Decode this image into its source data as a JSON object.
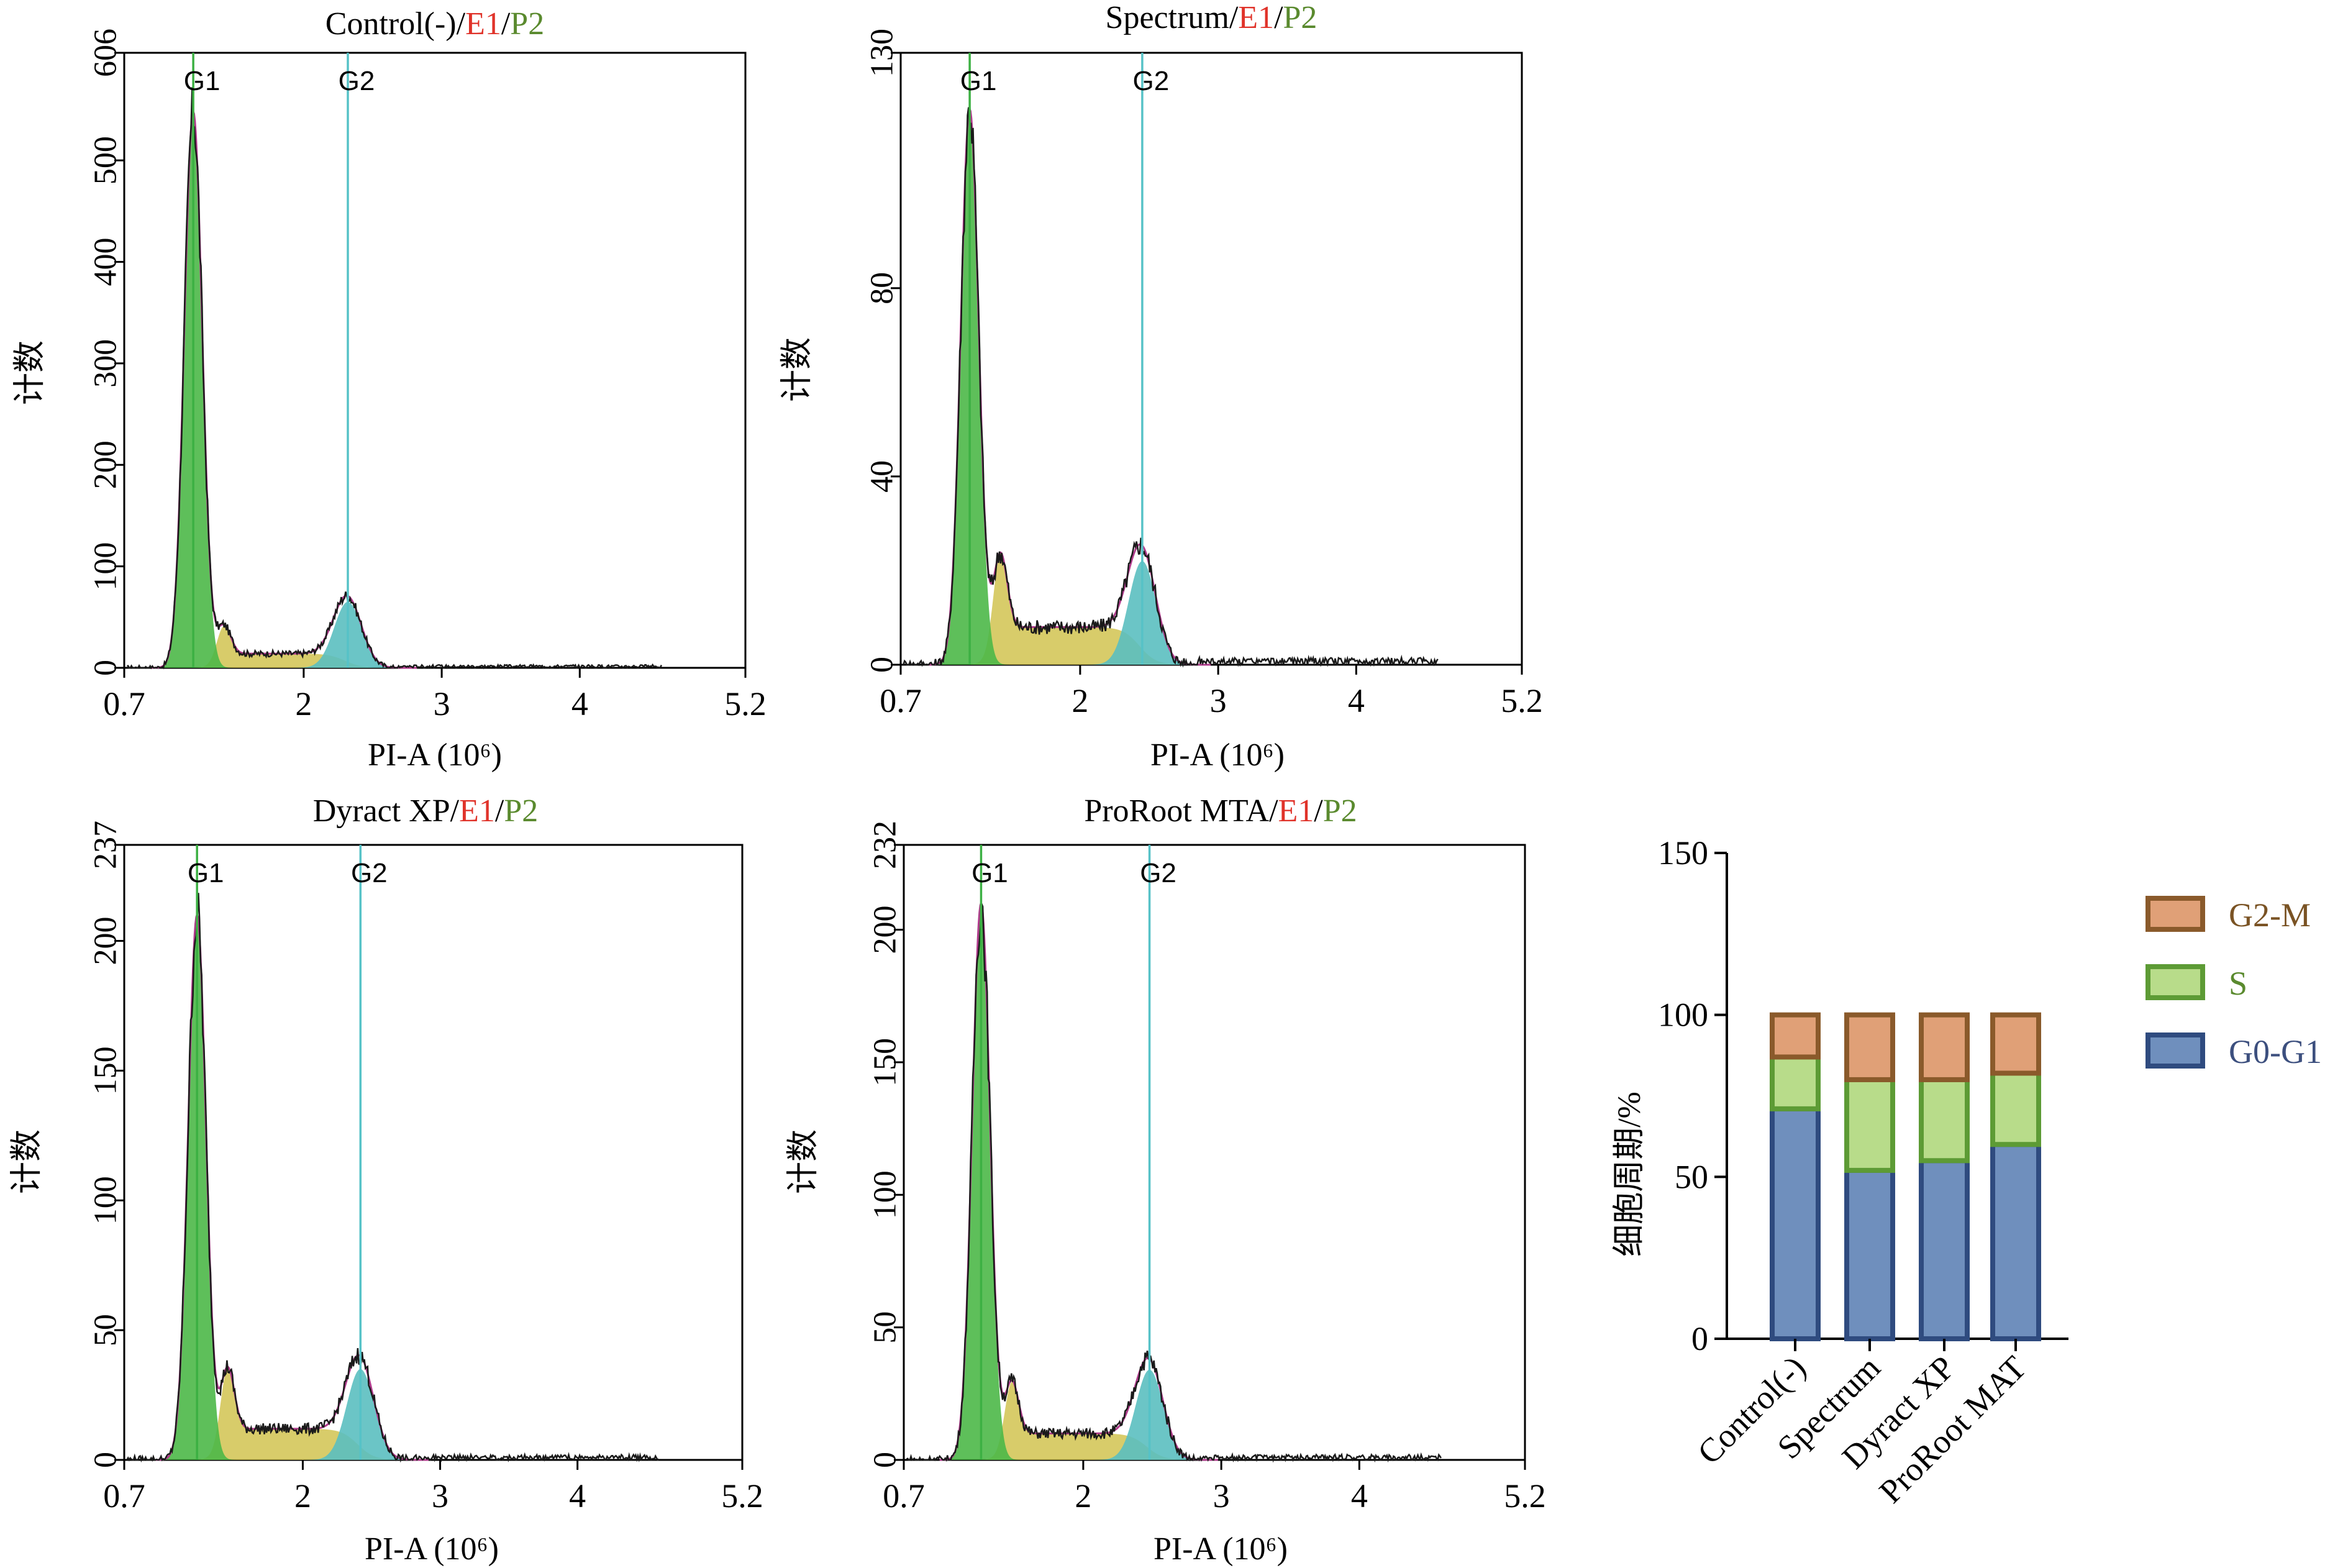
{
  "colors": {
    "g1_fill": "#4db848",
    "s_fill": "#d4c75a",
    "g2_fill": "#5bbfc0",
    "g1_line": "#3cb043",
    "g2_line": "#56c2c7",
    "envelope": "#b03a8c",
    "histogram": "#1a1a1a",
    "title_red": "#e0332a",
    "title_green": "#5a8a2e",
    "bar_g0g1_fill": "#6f8fbd",
    "bar_g0g1_edge": "#2f4b7f",
    "bar_s_fill": "#b8dc8a",
    "bar_s_edge": "#5d9b35",
    "bar_g2m_fill": "#e0a077",
    "bar_g2m_edge": "#8a5a2b",
    "legend_text_g2m": "#7a5324",
    "legend_text_s": "#5a8a2e",
    "legend_text_g0g1": "#3c4f7e"
  },
  "chart_data": [
    {
      "type": "area",
      "title": {
        "name": "Control(-)",
        "sep1": "/",
        "e1": "E1",
        "sep2": "/",
        "p2": "P2"
      },
      "xlabel": "PI-A (10⁶)",
      "ylabel": "计数",
      "x_ticks": [
        "0.7",
        "2",
        "3",
        "4",
        "5.2"
      ],
      "x_tick_values": [
        0.7,
        2,
        3,
        4,
        5.2
      ],
      "xlim": [
        0.7,
        5.2
      ],
      "y_ticks": [
        "0",
        "100",
        "200",
        "300",
        "400",
        "500",
        "606"
      ],
      "y_tick_values": [
        0,
        100,
        200,
        300,
        400,
        500,
        606
      ],
      "ylim": [
        0,
        606
      ],
      "gate_labels": [
        "G1",
        "G2"
      ],
      "g1_position": 1.2,
      "g2_position": 2.32,
      "g1_peak": 548,
      "g2_peak": 65,
      "s_level": 14,
      "noise_level": 3
    },
    {
      "type": "area",
      "title": {
        "name": "Spectrum",
        "sep1": "/",
        "e1": "E1",
        "sep2": "/",
        "p2": "P2"
      },
      "xlabel": "PI-A (10⁶)",
      "ylabel": "计数",
      "x_ticks": [
        "0.7",
        "2",
        "3",
        "4",
        "5.2"
      ],
      "x_tick_values": [
        0.7,
        2,
        3,
        4,
        5.2
      ],
      "xlim": [
        0.7,
        5.2
      ],
      "y_ticks": [
        "0",
        "40",
        "80",
        "130"
      ],
      "y_tick_values": [
        0,
        40,
        80,
        130
      ],
      "ylim": [
        0,
        130
      ],
      "gate_labels": [
        "G1",
        "G2"
      ],
      "g1_position": 1.2,
      "g2_position": 2.45,
      "g1_peak": 118,
      "g2_peak": 22,
      "s_level": 8,
      "noise_level": 1.5
    },
    {
      "type": "area",
      "title": {
        "name": "Dyract XP",
        "sep1": "/",
        "e1": "E1",
        "sep2": "/",
        "p2": "P2"
      },
      "xlabel": "PI-A (10⁶)",
      "ylabel": "计数",
      "x_ticks": [
        "0.7",
        "2",
        "3",
        "4",
        "5.2"
      ],
      "x_tick_values": [
        0.7,
        2,
        3,
        4,
        5.2
      ],
      "xlim": [
        0.7,
        5.2
      ],
      "y_ticks": [
        "0",
        "50",
        "100",
        "150",
        "200",
        "237"
      ],
      "y_tick_values": [
        0,
        50,
        100,
        150,
        200,
        237
      ],
      "ylim": [
        0,
        237
      ],
      "gate_labels": [
        "G1",
        "G2"
      ],
      "g1_position": 1.23,
      "g2_position": 2.42,
      "g1_peak": 210,
      "g2_peak": 35,
      "s_level": 12,
      "noise_level": 2
    },
    {
      "type": "area",
      "title": {
        "name": "ProRoot MTA",
        "sep1": "/",
        "e1": "E1",
        "sep2": "/",
        "p2": "P2"
      },
      "xlabel": "PI-A (10⁶)",
      "ylabel": "计数",
      "x_ticks": [
        "0.7",
        "2",
        "3",
        "4",
        "5.2"
      ],
      "x_tick_values": [
        0.7,
        2,
        3,
        4,
        5.2
      ],
      "xlim": [
        0.7,
        5.2
      ],
      "y_ticks": [
        "0",
        "50",
        "100",
        "150",
        "200",
        "232"
      ],
      "y_tick_values": [
        0,
        50,
        100,
        150,
        200,
        232
      ],
      "ylim": [
        0,
        232
      ],
      "gate_labels": [
        "G1",
        "G2"
      ],
      "g1_position": 1.26,
      "g2_position": 2.48,
      "g1_peak": 210,
      "g2_peak": 34,
      "s_level": 10,
      "noise_level": 2
    },
    {
      "type": "bar",
      "stacked": true,
      "categories": [
        "Control(-)",
        "Spectrum",
        "Dyract XP",
        "ProRoot MAT"
      ],
      "series": [
        {
          "name": "G0-G1",
          "values": [
            71,
            52,
            55,
            60
          ]
        },
        {
          "name": "S",
          "values": [
            16,
            28,
            25,
            22
          ]
        },
        {
          "name": "G2-M",
          "values": [
            13,
            20,
            20,
            18
          ]
        }
      ],
      "ylabel": "细胞周期/%",
      "y_ticks": [
        "0",
        "50",
        "100",
        "150"
      ],
      "y_tick_values": [
        0,
        50,
        100,
        150
      ],
      "ylim": [
        0,
        150
      ],
      "legend_position": "right"
    }
  ]
}
